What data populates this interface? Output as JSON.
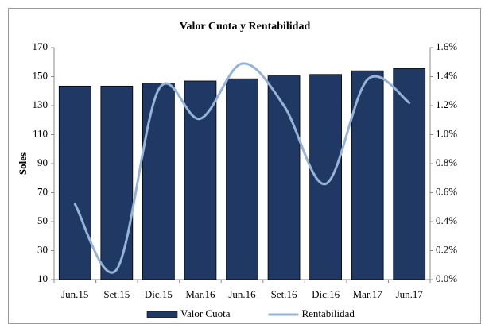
{
  "chart_data": {
    "type": "bar",
    "title": "Valor Cuota y Rentabilidad",
    "ylabel": "Soles",
    "categories": [
      "Jun.15",
      "Set.15",
      "Dic.15",
      "Mar.16",
      "Jun.16",
      "Set.16",
      "Dic.16",
      "Mar.17",
      "Jun.17"
    ],
    "series": [
      {
        "name": "Valor Cuota",
        "color": "#203864",
        "values": [
          143.5,
          143.5,
          145.5,
          147,
          148.5,
          150.5,
          151.5,
          154,
          155.5
        ]
      },
      {
        "name": "Rentabilidad",
        "color": "#95b3d7",
        "type": "line",
        "axis": "y2",
        "smooth": true,
        "values": [
          0.52,
          0.07,
          1.31,
          1.11,
          1.49,
          1.2,
          0.66,
          1.38,
          1.22
        ]
      }
    ],
    "ylim": [
      10,
      170
    ],
    "yticks": [
      10,
      30,
      50,
      70,
      90,
      110,
      130,
      150,
      170
    ],
    "y2lim": [
      0,
      1.6
    ],
    "y2ticks": [
      {
        "value": 0,
        "label": "0.0%"
      },
      {
        "value": 0.2,
        "label": "0.2%"
      },
      {
        "value": 0.4,
        "label": "0.4%"
      },
      {
        "value": 0.6,
        "label": "0.6%"
      },
      {
        "value": 0.8,
        "label": "0.8%"
      },
      {
        "value": 1.0,
        "label": "1.0%"
      },
      {
        "value": 1.2,
        "label": "1.2%"
      },
      {
        "value": 1.4,
        "label": "1.4%"
      },
      {
        "value": 1.6,
        "label": "1.6%"
      }
    ],
    "grid": false,
    "legend": "bottom"
  }
}
